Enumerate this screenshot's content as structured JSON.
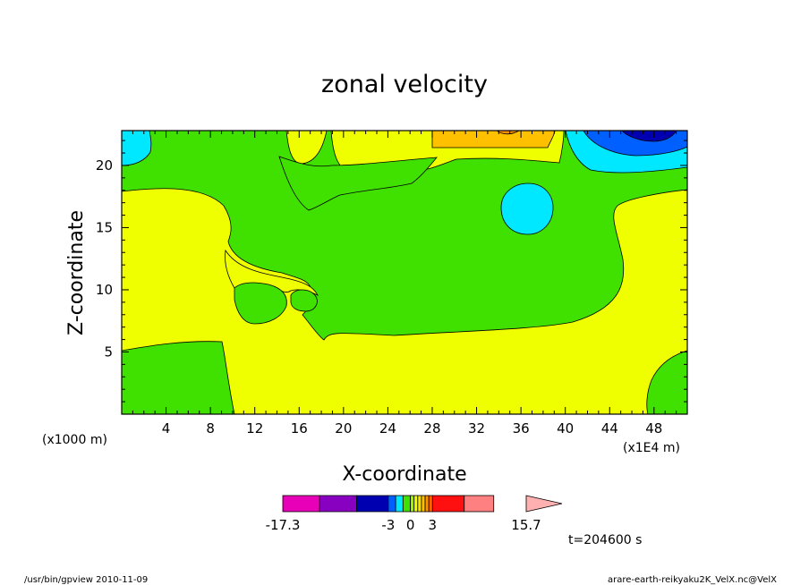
{
  "chart_data": {
    "type": "heatmap",
    "title": "zonal velocity",
    "xlabel": "X-coordinate",
    "ylabel": "Z-coordinate",
    "x_unit_left": "(x1000 m)",
    "x_unit_right": "(x1E4 m)",
    "xlim": [
      0,
      51
    ],
    "ylim": [
      0,
      22.8
    ],
    "x_ticks": [
      4,
      8,
      12,
      16,
      20,
      24,
      28,
      32,
      36,
      40,
      44,
      48
    ],
    "y_ticks": [
      5,
      10,
      15,
      20
    ],
    "time_label": "t=204600 s",
    "colorbar": {
      "labels": [
        {
          "text": "-17.3",
          "value": -17.3
        },
        {
          "text": "-3",
          "value": -3
        },
        {
          "text": "0",
          "value": 0
        },
        {
          "text": "3",
          "value": 3
        },
        {
          "text": "15.7",
          "value": 15.7
        }
      ],
      "colors": [
        "#e800b8",
        "#8800c0",
        "#0000b0",
        "#0060ff",
        "#00e8ff",
        "#40e000",
        "#a0f000",
        "#f0ff00",
        "#ffe000",
        "#ffc000",
        "#ff9000",
        "#ff6000",
        "#ff1010",
        "#ff8080",
        "#ffb0b0"
      ]
    },
    "regions": [
      {
        "name": "positive-small",
        "color": "#f0ff00"
      },
      {
        "name": "negative-small",
        "color": "#40e000"
      },
      {
        "name": "negative-medium",
        "color": "#00e8ff"
      },
      {
        "name": "negative-large",
        "color": "#0000b0"
      },
      {
        "name": "negative-strong",
        "color": "#0060ff"
      },
      {
        "name": "positive-medium",
        "color": "#ffc000"
      },
      {
        "name": "positive-large",
        "color": "#ff9000"
      }
    ]
  },
  "footer": {
    "left": "/usr/bin/gpview  2010-11-09",
    "right": "arare-earth-reikyaku2K_VelX.nc@VelX"
  }
}
